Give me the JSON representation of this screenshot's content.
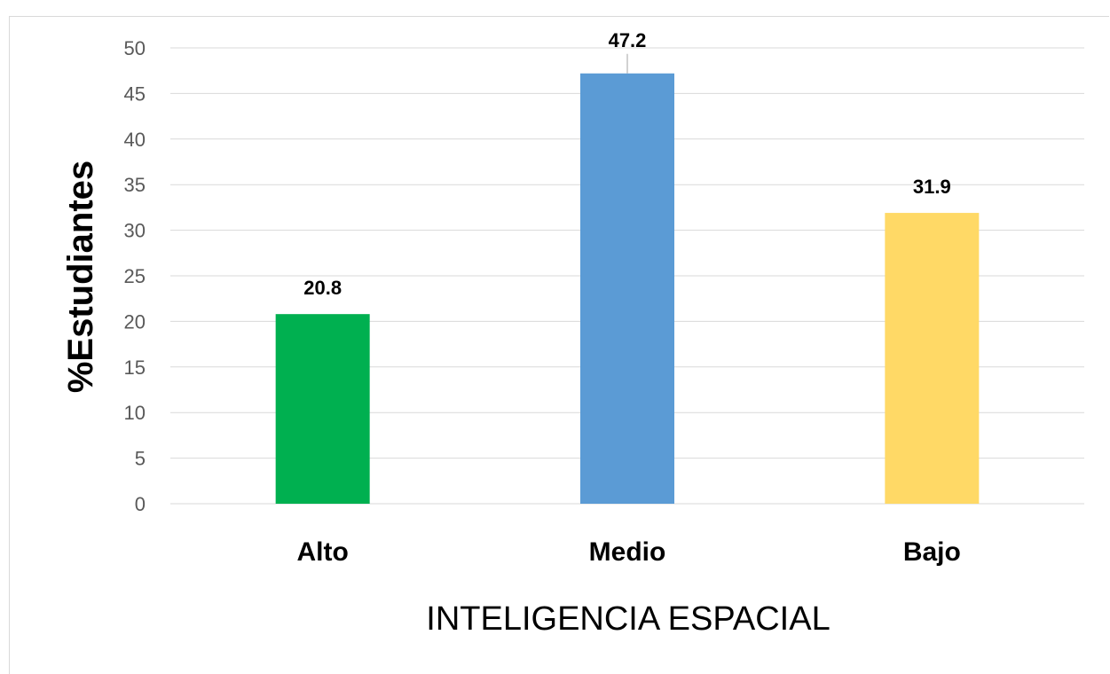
{
  "chart_data": {
    "type": "bar",
    "categories": [
      "Alto",
      "Medio",
      "Bajo"
    ],
    "values": [
      20.8,
      47.2,
      31.9
    ],
    "value_labels": [
      "20.8",
      "47.2",
      "31.9"
    ],
    "colors": [
      "#00b050",
      "#5b9bd5",
      "#ffd966"
    ],
    "ylabel": "%Estudiantes",
    "xlabel": "INTELIGENCIA ESPACIAL",
    "ylim": [
      0,
      50
    ],
    "yticks": [
      "0",
      "5",
      "10",
      "15",
      "20",
      "25",
      "30",
      "35",
      "40",
      "45",
      "50"
    ],
    "grid": true,
    "gridline_color": "#d9d9d9"
  }
}
